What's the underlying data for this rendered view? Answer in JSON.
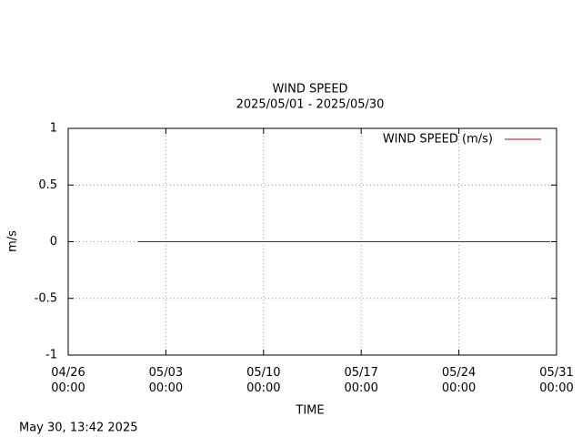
{
  "chart_data": {
    "type": "line",
    "title": "WIND SPEED",
    "subtitle": "2025/05/01 - 2025/05/30",
    "x_label": "TIME",
    "y_label": "m/s",
    "footer": "May 30, 13:42 2025",
    "x": [
      "2025-05-01 00:00",
      "2025-05-30 13:00"
    ],
    "series": [
      {
        "name": "WIND SPEED (m/s)",
        "color": "#c00000",
        "values": [
          0,
          0
        ]
      }
    ],
    "xlim": [
      "2025-04-26 00:00",
      "2025-05-31 00:00"
    ],
    "xticks": [
      {
        "value": "2025-04-26 00:00",
        "label": [
          "04/26",
          "00:00"
        ]
      },
      {
        "value": "2025-05-03 00:00",
        "label": [
          "05/03",
          "00:00"
        ]
      },
      {
        "value": "2025-05-10 00:00",
        "label": [
          "05/10",
          "00:00"
        ]
      },
      {
        "value": "2025-05-17 00:00",
        "label": [
          "05/17",
          "00:00"
        ]
      },
      {
        "value": "2025-05-24 00:00",
        "label": [
          "05/24",
          "00:00"
        ]
      },
      {
        "value": "2025-05-31 00:00",
        "label": [
          "05/31",
          "00:00"
        ]
      }
    ],
    "ylim": [
      -1,
      1
    ],
    "yticks": [
      -1,
      -0.5,
      0,
      0.5,
      1
    ],
    "grid": true,
    "legend": "top-right"
  }
}
